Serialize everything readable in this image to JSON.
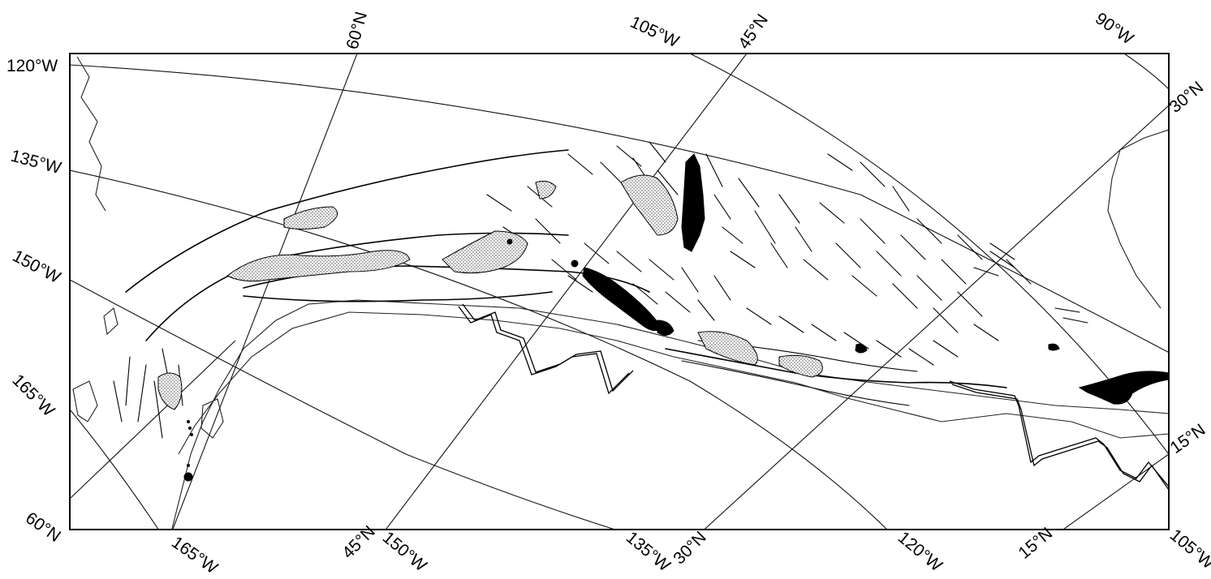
{
  "map": {
    "labels": {
      "top_60n": "60°N",
      "top_105w": "105°W",
      "top_45n": "45°N",
      "top_90w": "90°W",
      "left_120w": "120°W",
      "left_135w": "135°W",
      "left_150w": "150°W",
      "left_165w": "165°W",
      "left_60n": "60°N",
      "right_30n": "30°N",
      "right_15n": "15°N",
      "bottom_165w": "165°W",
      "bottom_45n": "45°N",
      "bottom_150w": "150°W",
      "bottom_135w": "135°W",
      "bottom_30n": "30°N",
      "bottom_120w": "120°W",
      "bottom_15n": "15°N",
      "bottom_105w": "105°W"
    },
    "colors": {
      "ink": "#000000",
      "paper": "#ffffff"
    }
  }
}
